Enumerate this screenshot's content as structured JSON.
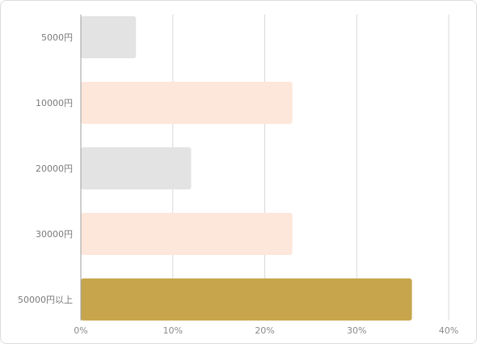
{
  "chart_data": {
    "type": "bar",
    "orientation": "horizontal",
    "categories": [
      "5000円",
      "10000円",
      "20000円",
      "30000円",
      "50000円以上"
    ],
    "values": [
      6,
      23,
      12,
      23,
      36
    ],
    "xlim": [
      0,
      40
    ],
    "x_ticks": [
      0,
      10,
      20,
      30,
      40
    ],
    "x_tick_labels": [
      "0%",
      "10%",
      "20%",
      "30%",
      "40%"
    ],
    "title": "",
    "xlabel": "",
    "ylabel": "",
    "grid": "vertical",
    "colors": [
      "#e3e3e3",
      "#fde6da",
      "#e3e3e3",
      "#fde6da",
      "#c6a54c"
    ]
  }
}
